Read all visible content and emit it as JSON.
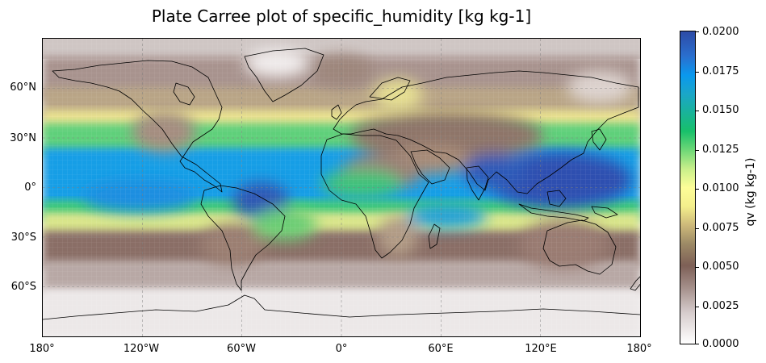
{
  "title": "Plate Carree plot of specific_humidity [kg kg-1]",
  "map": {
    "projection": "Plate Carree",
    "variable": "specific_humidity",
    "extent": {
      "lon": [
        -180,
        180
      ],
      "lat": [
        -90,
        90
      ]
    },
    "gridlines": true,
    "coastlines": true,
    "colormap": "terrain_r",
    "lat_ticks": [
      {
        "value": 60,
        "label": "60°N"
      },
      {
        "value": 30,
        "label": "30°N"
      },
      {
        "value": 0,
        "label": "0°"
      },
      {
        "value": -30,
        "label": "30°S"
      },
      {
        "value": -60,
        "label": "60°S"
      }
    ],
    "lon_ticks": [
      {
        "value": -180,
        "label": "180°"
      },
      {
        "value": -120,
        "label": "120°W"
      },
      {
        "value": -60,
        "label": "60°W"
      },
      {
        "value": 0,
        "label": "0°"
      },
      {
        "value": 60,
        "label": "60°E"
      },
      {
        "value": 120,
        "label": "120°E"
      },
      {
        "value": 180,
        "label": "180°"
      }
    ]
  },
  "colorbar": {
    "label": "qv (kg kg-1)",
    "range": [
      0,
      0.02
    ],
    "ticks": [
      {
        "value": 0.0,
        "label": "0.0000"
      },
      {
        "value": 0.0025,
        "label": "0.0025"
      },
      {
        "value": 0.005,
        "label": "0.0050"
      },
      {
        "value": 0.0075,
        "label": "0.0075"
      },
      {
        "value": 0.01,
        "label": "0.0100"
      },
      {
        "value": 0.0125,
        "label": "0.0125"
      },
      {
        "value": 0.015,
        "label": "0.0150"
      },
      {
        "value": 0.0175,
        "label": "0.0175"
      },
      {
        "value": 0.02,
        "label": "0.0200"
      }
    ]
  }
}
